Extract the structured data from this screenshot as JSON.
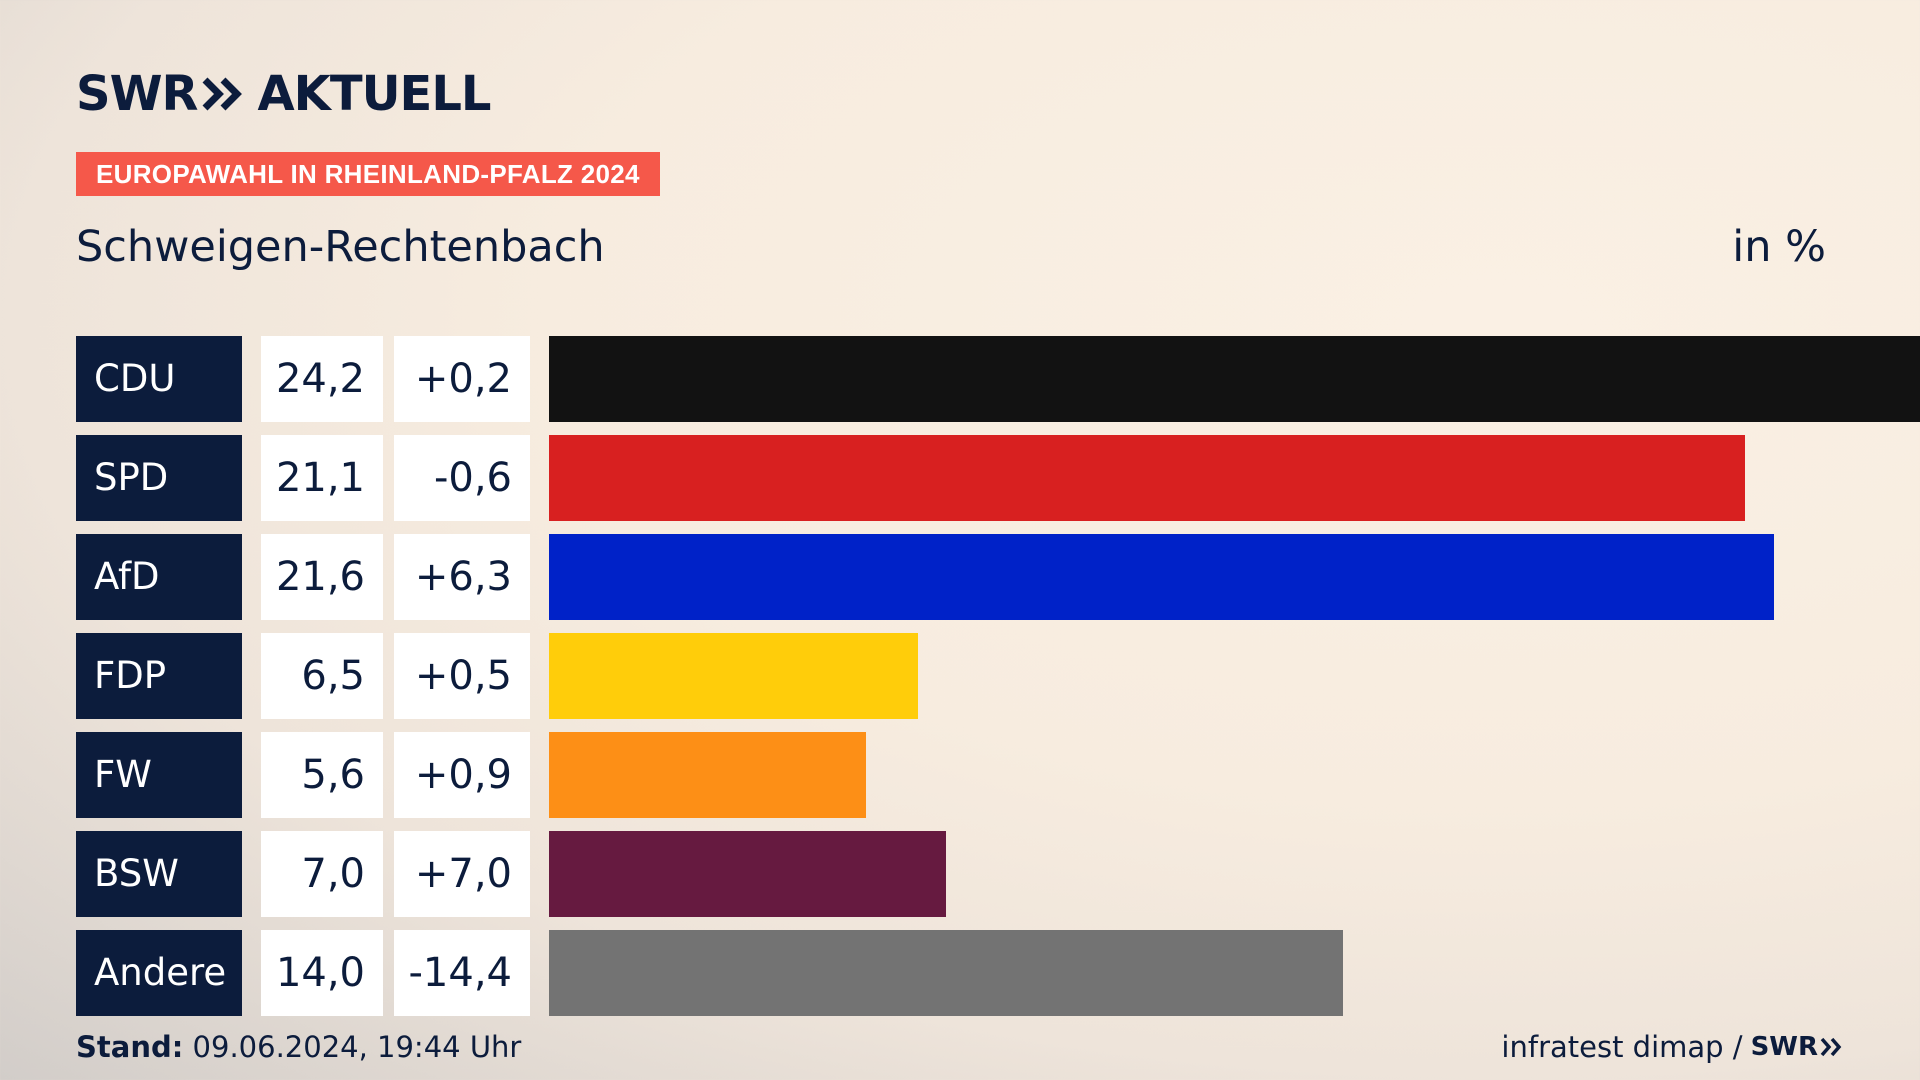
{
  "brand": {
    "logo_left": "SWR",
    "logo_right": "AKTUELL",
    "chevron_icon": "double-chevron-right-icon"
  },
  "header": {
    "tag": "EUROPAWAHL IN RHEINLAND-PFALZ 2024",
    "subtitle": "Schweigen-Rechtenbach",
    "unit": "in %"
  },
  "chart_data": {
    "type": "bar",
    "orientation": "horizontal",
    "categories": [
      "CDU",
      "SPD",
      "AfD",
      "FDP",
      "FW",
      "BSW",
      "Andere"
    ],
    "values": [
      24.2,
      21.1,
      21.6,
      6.5,
      5.6,
      7.0,
      14.0
    ],
    "value_labels": [
      "24,2",
      "21,1",
      "21,6",
      "6,5",
      "5,6",
      "7,0",
      "14,0"
    ],
    "change_labels": [
      "+0,2",
      "-0,6",
      "+6,3",
      "+0,5",
      "+0,9",
      "+7,0",
      "-14,4"
    ],
    "changes": [
      0.2,
      -0.6,
      6.3,
      0.5,
      0.9,
      7.0,
      -14.4
    ],
    "colors": [
      "#121212",
      "#d82020",
      "#0022c8",
      "#ffcd0a",
      "#fd8f16",
      "#661a40",
      "#737373"
    ],
    "xlim": [
      0,
      24.2
    ]
  },
  "footer": {
    "stand_label": "Stand:",
    "stand_value": "09.06.2024, 19:44 Uhr",
    "source": "infratest dimap /",
    "source_logo": "SWR"
  }
}
